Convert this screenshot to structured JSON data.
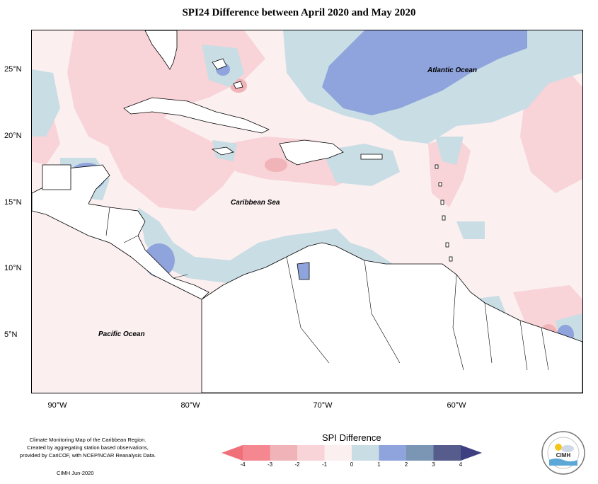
{
  "title": "SPI24 Difference between April 2020 and May 2020",
  "map": {
    "x_ticks": [
      "90°W",
      "80°W",
      "70°W",
      "60°W"
    ],
    "y_ticks": [
      "25°N",
      "20°N",
      "15°N",
      "10°N",
      "5°N"
    ],
    "ocean_labels": {
      "atlantic": "Atlantic Ocean",
      "caribbean": "Caribbean Sea",
      "pacific": "Pacific Ocean"
    }
  },
  "legend": {
    "title": "SPI Difference",
    "ticks": [
      "-4",
      "-3",
      "-2",
      "-1",
      "0",
      "1",
      "2",
      "3",
      "4"
    ],
    "colors": [
      "#f4878f",
      "#f0b3b8",
      "#f8d3d7",
      "#fbeff0",
      "#c9dde5",
      "#8fa3dc",
      "#7b95b4",
      "#565d8c"
    ],
    "arrow_low_color": "#f0707a",
    "arrow_high_color": "#3d3f80"
  },
  "credit": {
    "lines": [
      "Climate Monitoring Map of the Caribbean Region.",
      "Created by aggregating station based observations,",
      "provided by CariCOF, with NCEP/NCAR Reanalysis Data."
    ],
    "date": "CIMH Jun-2020"
  },
  "logo": {
    "name": "CIMH"
  }
}
